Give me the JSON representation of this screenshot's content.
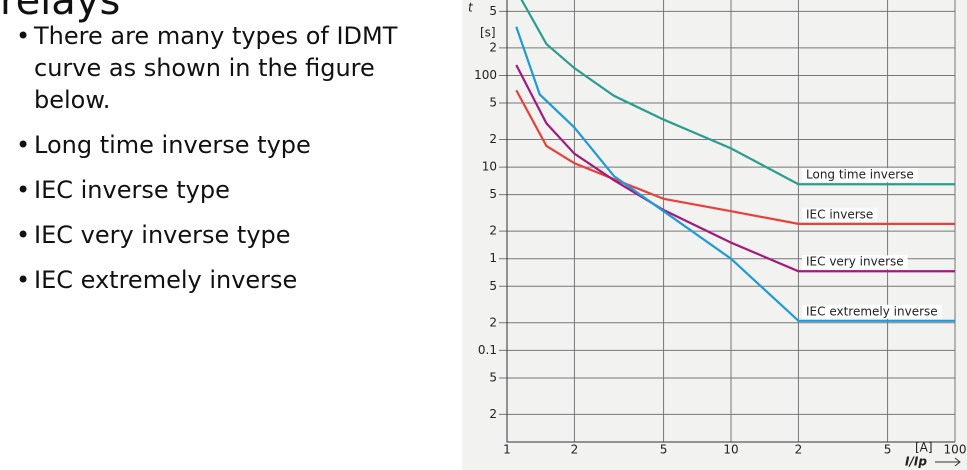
{
  "title": "relays",
  "bullets": [
    "There are many types of IDMT curve as shown in the figure below.",
    "Long time inverse type",
    "IEC inverse type",
    "IEC very inverse type",
    "IEC extremely inverse"
  ],
  "chart_data": {
    "type": "line",
    "ylabel": "t",
    "yunit": "[s]",
    "xlabel": "I/Ip",
    "xunit": "[A]",
    "xscale": "log",
    "yscale": "log",
    "grid": true,
    "xlim": [
      1,
      100
    ],
    "ylim": [
      0.01,
      700
    ],
    "xticks": [
      1,
      2,
      5,
      10,
      {
        "value": 20,
        "label": "2"
      },
      {
        "value": 50,
        "label": "5"
      },
      100
    ],
    "yticks": [
      {
        "value": 500,
        "label": "5"
      },
      {
        "value": 200,
        "label": "2"
      },
      100,
      {
        "value": 50,
        "label": "5"
      },
      {
        "value": 20,
        "label": "2"
      },
      10,
      5,
      2,
      1,
      {
        "value": 0.5,
        "label": "5"
      },
      {
        "value": 0.2,
        "label": "2"
      },
      0.1,
      {
        "value": 0.05,
        "label": "5"
      },
      {
        "value": 0.02,
        "label": "2"
      }
    ],
    "series": [
      {
        "name": "Long time inverse",
        "color": "#2a9d8f",
        "x": [
          1.15,
          1.5,
          2,
          3,
          5,
          10,
          20,
          100
        ],
        "values": [
          700,
          220,
          120,
          60,
          33,
          16,
          6.5,
          6.5
        ]
      },
      {
        "name": "IEC inverse",
        "color": "#e8403a",
        "x": [
          1.1,
          1.5,
          2,
          3,
          5,
          10,
          20,
          100
        ],
        "values": [
          69,
          17,
          11,
          7.4,
          4.5,
          3.3,
          2.4,
          2.4
        ]
      },
      {
        "name": "IEC very inverse",
        "color": "#a21a7a",
        "x": [
          1.1,
          1.5,
          2,
          3,
          5,
          10,
          20,
          100
        ],
        "values": [
          130,
          30,
          14,
          7.2,
          3.4,
          1.5,
          0.73,
          0.73
        ]
      },
      {
        "name": "IEC extremely inverse",
        "color": "#1e9bd7",
        "x": [
          1.1,
          1.4,
          2,
          3,
          5,
          10,
          20,
          100
        ],
        "values": [
          340,
          62,
          27,
          8,
          3.3,
          1,
          0.21,
          0.21
        ]
      }
    ]
  }
}
